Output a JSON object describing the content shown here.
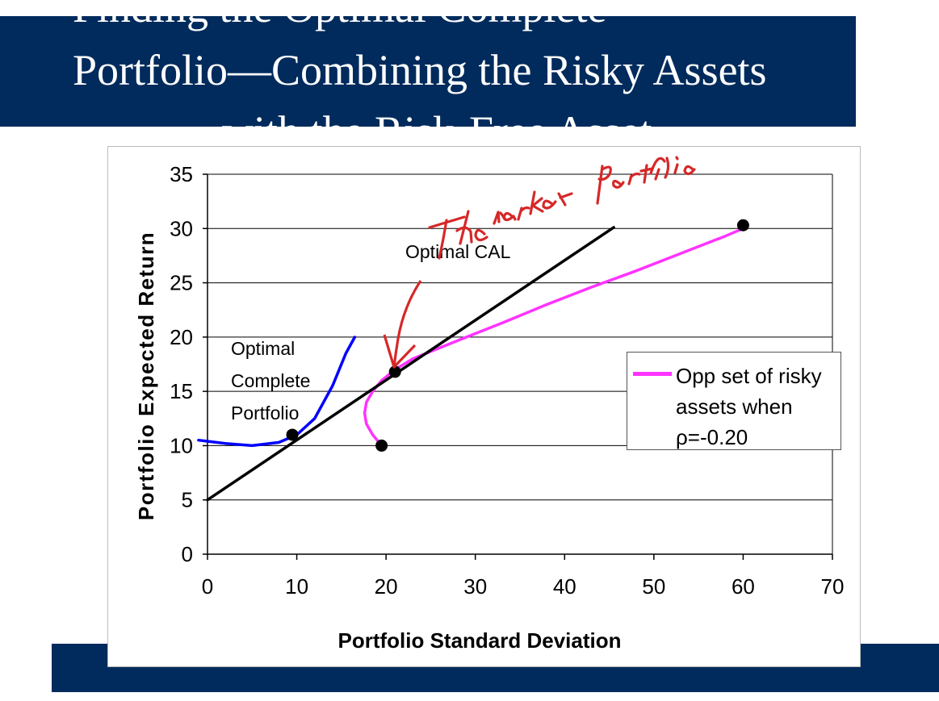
{
  "slide": {
    "title_lines": [
      "Finding the Optimal Complete",
      "Portfolio—Combining the Risky Assets",
      "with the Risk-Free Asset"
    ],
    "colors": {
      "band": "#002b5c",
      "title_text": "#ffffff",
      "handwriting": "#d62828"
    },
    "handwritten_note": "The market portfolio"
  },
  "chart_data": {
    "type": "line",
    "xlabel": "Portfolio Standard Deviation",
    "ylabel": "Portfolio Expected Return",
    "xlim": [
      0,
      70
    ],
    "ylim": [
      0,
      35
    ],
    "x_ticks": [
      "0",
      "10",
      "20",
      "30",
      "40",
      "50",
      "60",
      "70"
    ],
    "y_ticks": [
      "0",
      "5",
      "10",
      "15",
      "20",
      "25",
      "30",
      "35"
    ],
    "grid": "horizontal",
    "legend_position": "right",
    "series": [
      {
        "name": "Opp set of risky assets when ρ=-0.20",
        "legend_text": "Opp set of risky assets when ρ=-0.20",
        "color": "#ff33ff",
        "points": [
          [
            19.5,
            10
          ],
          [
            18.5,
            11
          ],
          [
            17.8,
            12
          ],
          [
            17.6,
            13
          ],
          [
            17.8,
            14
          ],
          [
            18.5,
            15
          ],
          [
            19.5,
            16
          ],
          [
            21,
            17
          ],
          [
            23,
            18
          ],
          [
            26,
            19
          ],
          [
            29,
            20
          ],
          [
            33,
            21.3
          ],
          [
            38,
            23
          ],
          [
            43,
            24.6
          ],
          [
            48,
            26.1
          ],
          [
            53,
            27.7
          ],
          [
            58,
            29.3
          ],
          [
            60,
            30
          ]
        ]
      },
      {
        "label": "Optimal CAL",
        "color": "#000000",
        "points": [
          [
            0,
            5
          ],
          [
            45.5,
            30.1
          ]
        ]
      },
      {
        "label": "Optimal Complete Portfolio",
        "color": "#0000ff",
        "points": [
          [
            -1,
            10.5
          ],
          [
            2,
            10.2
          ],
          [
            5,
            10
          ],
          [
            8,
            10.3
          ],
          [
            10,
            11
          ],
          [
            12,
            12.5
          ],
          [
            14,
            15.5
          ],
          [
            15.5,
            18.5
          ],
          [
            16.5,
            20
          ]
        ]
      }
    ],
    "markers": [
      [
        9.5,
        11
      ],
      [
        21,
        16.8
      ],
      [
        19.5,
        10
      ],
      [
        60,
        30.3
      ]
    ],
    "annotations": {
      "optimal_cal": "Optimal CAL",
      "optimal_complete_portfolio": [
        "Optimal",
        "Complete",
        "Portfolio"
      ]
    }
  }
}
